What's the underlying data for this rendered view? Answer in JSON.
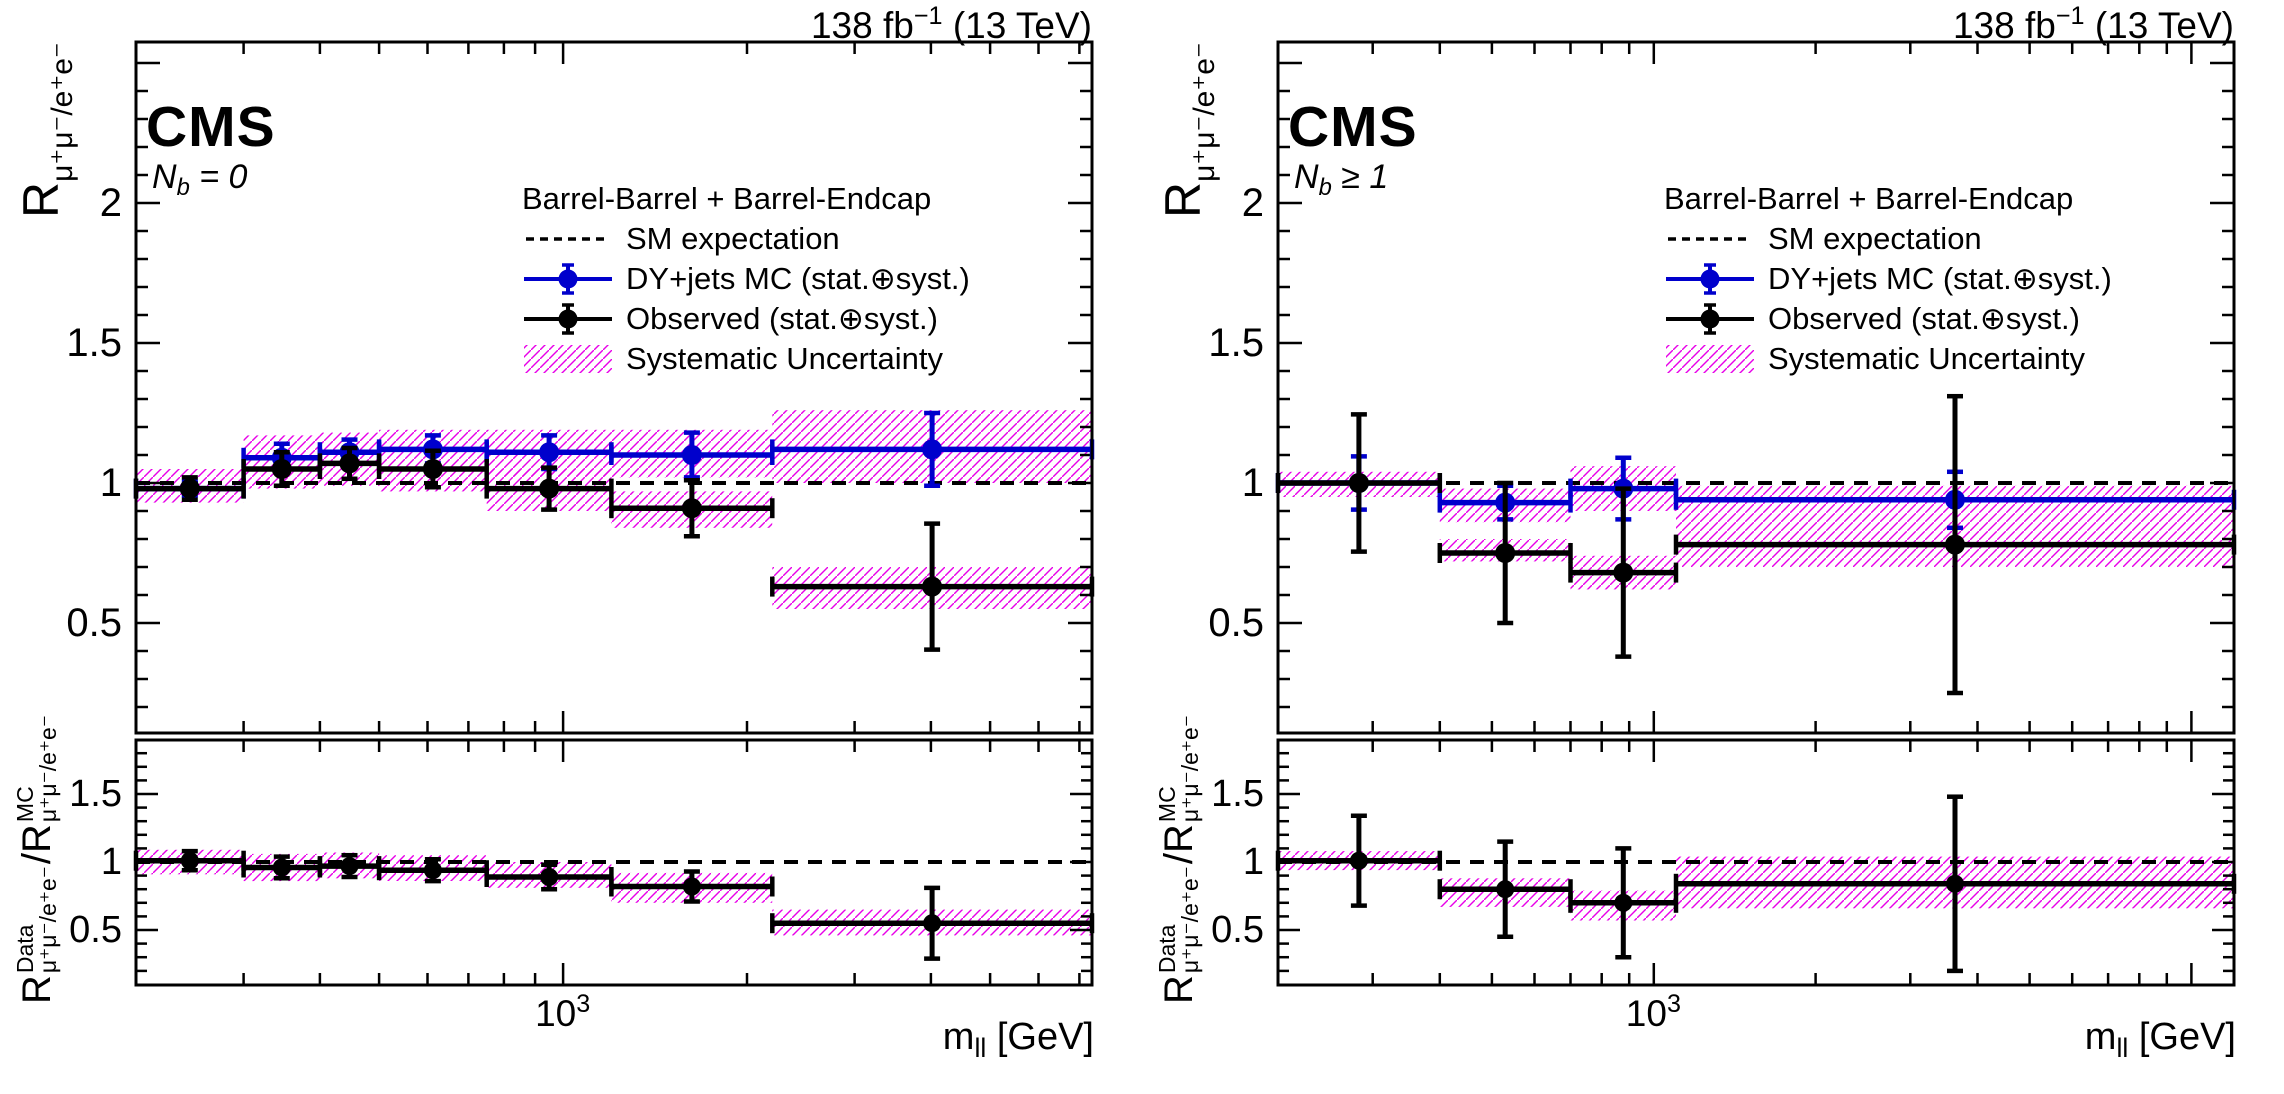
{
  "branding": {
    "experiment": "CMS"
  },
  "header": {
    "lumi_prefix": "138 fb",
    "lumi_sup": "−1",
    "lumi_suffix": " (13 TeV)"
  },
  "axes": {
    "y_main_R": "R",
    "y_main_sub": "μ⁺μ⁻/e⁺e⁻",
    "y_ratio_R1": "R",
    "y_ratio_sup1": "Data",
    "y_ratio_sub1": "μ⁺μ⁻/e⁺e⁻",
    "y_ratio_mid": "/R",
    "y_ratio_sup2": "MC",
    "y_ratio_sub2": "μ⁺μ⁻/e⁺e⁻",
    "x_prefix": "m",
    "x_sub": "ll",
    "x_suffix": " [GeV]",
    "decade_base": "10",
    "decade_exp": "3"
  },
  "panels": [
    {
      "category_prefix": "N",
      "category_sub": "b",
      "category_rest": " = 0"
    },
    {
      "category_prefix": "N",
      "category_sub": "b",
      "category_rest": " ≥ 1"
    }
  ],
  "legend": {
    "title": "Barrel-Barrel + Barrel-Endcap",
    "entries": [
      {
        "label": "SM expectation",
        "swatch": "dashed-line"
      },
      {
        "label": "DY+jets MC (stat.⊕syst.)",
        "swatch": "mc-marker"
      },
      {
        "label": "Observed (stat.⊕syst.)",
        "swatch": "obs-marker"
      },
      {
        "label": "Systematic Uncertainty",
        "swatch": "hatch-box"
      }
    ]
  },
  "colors": {
    "mc_blue": "#0000cc",
    "observed_black": "#000000",
    "syst_hatch_magenta": "#e800e8",
    "sm_dashed_black": "#000000"
  },
  "chart_data": [
    {
      "type": "errorbar",
      "title": "CMS",
      "category": "N_b = 0",
      "lumi": "138 fb-1 (13 TeV)",
      "region": "Barrel-Barrel + Barrel-Endcap",
      "legend": [
        "SM expectation",
        "DY+jets MC (stat.⊕syst.)",
        "Observed (stat.⊕syst.)",
        "Systematic Uncertainty"
      ],
      "xlabel": "m_ll [GeV]",
      "x_axis": {
        "scale": "log",
        "min": 200,
        "max": 7340
      },
      "y_main": {
        "label": "R_mu+mu-/e+e-",
        "min": 0.107,
        "max": 2.575,
        "tick_values": [
          0.5,
          1,
          1.5,
          2
        ],
        "tick_labels": [
          "0.5",
          "1",
          "1.5",
          "2"
        ]
      },
      "y_ratio": {
        "label": "R_Data / R_MC",
        "min": 0.096,
        "max": 1.897,
        "tick_values": [
          0.5,
          1,
          1.5
        ],
        "tick_labels": [
          "0.5",
          "1",
          "1.5"
        ]
      },
      "sm_expectation": 1.0,
      "bins": [
        {
          "range": [
            200,
            300
          ],
          "mc": 0.98,
          "mc_err": 0.025,
          "obs": 0.98,
          "obs_err": 0.04,
          "syst_bands": [
            [
              0.93,
              1.05
            ]
          ],
          "ratio": 1.01,
          "ratio_err": 0.07,
          "ratio_syst_bands": [
            [
              0.91,
              1.09
            ]
          ]
        },
        {
          "range": [
            300,
            400
          ],
          "mc": 1.09,
          "mc_err": 0.05,
          "obs": 1.05,
          "obs_err": 0.06,
          "syst_bands": [
            [
              0.98,
              1.17
            ]
          ],
          "ratio": 0.96,
          "ratio_err": 0.08,
          "ratio_syst_bands": [
            [
              0.86,
              1.06
            ]
          ]
        },
        {
          "range": [
            400,
            500
          ],
          "mc": 1.11,
          "mc_err": 0.045,
          "obs": 1.07,
          "obs_err": 0.055,
          "syst_bands": [
            [
              0.99,
              1.18
            ]
          ],
          "ratio": 0.97,
          "ratio_err": 0.08,
          "ratio_syst_bands": [
            [
              0.88,
              1.07
            ]
          ]
        },
        {
          "range": [
            500,
            750
          ],
          "mc": 1.12,
          "mc_err": 0.05,
          "obs": 1.05,
          "obs_err": 0.065,
          "syst_bands": [
            [
              0.97,
              1.19
            ]
          ],
          "ratio": 0.94,
          "ratio_err": 0.08,
          "ratio_syst_bands": [
            [
              0.86,
              1.05
            ]
          ]
        },
        {
          "range": [
            750,
            1200
          ],
          "mc": 1.11,
          "mc_err": 0.06,
          "obs": 0.98,
          "obs_err": 0.075,
          "syst_bands": [
            [
              1.02,
              1.19
            ],
            [
              0.9,
              1.05
            ]
          ],
          "ratio": 0.89,
          "ratio_err": 0.09,
          "ratio_syst_bands": [
            [
              0.81,
              1.0
            ]
          ]
        },
        {
          "range": [
            1200,
            2200
          ],
          "mc": 1.1,
          "mc_err": 0.08,
          "obs": 0.91,
          "obs_err": 0.1,
          "syst_bands": [
            [
              1.02,
              1.19
            ],
            [
              0.84,
              0.97
            ]
          ],
          "ratio": 0.82,
          "ratio_err": 0.11,
          "ratio_syst_bands": [
            [
              0.7,
              0.92
            ]
          ]
        },
        {
          "range": [
            2200,
            7340
          ],
          "mc": 1.12,
          "mc_err": 0.13,
          "obs": 0.63,
          "obs_err": 0.225,
          "syst_bands": [
            [
              1.0,
              1.26
            ],
            [
              0.55,
              0.7
            ]
          ],
          "ratio": 0.55,
          "ratio_err": 0.26,
          "ratio_syst_bands": [
            [
              0.46,
              0.65
            ]
          ]
        }
      ]
    },
    {
      "type": "errorbar",
      "title": "CMS",
      "category": "N_b ≥ 1",
      "lumi": "138 fb-1 (13 TeV)",
      "region": "Barrel-Barrel + Barrel-Endcap",
      "legend": [
        "SM expectation",
        "DY+jets MC (stat.⊕syst.)",
        "Observed (stat.⊕syst.)",
        "Systematic Uncertainty"
      ],
      "xlabel": "m_ll [GeV]",
      "x_axis": {
        "scale": "log",
        "min": 200,
        "max": 12000
      },
      "y_main": {
        "label": "R_mu+mu-/e+e-",
        "min": 0.107,
        "max": 2.575,
        "tick_values": [
          0.5,
          1,
          1.5,
          2
        ],
        "tick_labels": [
          "0.5",
          "1",
          "1.5",
          "2"
        ]
      },
      "y_ratio": {
        "label": "R_Data / R_MC",
        "min": 0.096,
        "max": 1.897,
        "tick_values": [
          0.5,
          1,
          1.5
        ],
        "tick_labels": [
          "0.5",
          "1",
          "1.5"
        ]
      },
      "sm_expectation": 1.0,
      "bins": [
        {
          "range": [
            200,
            400
          ],
          "mc": 1.0,
          "mc_err": 0.095,
          "obs": 1.0,
          "obs_err": 0.245,
          "syst_bands": [
            [
              0.95,
              1.04
            ]
          ],
          "ratio": 1.01,
          "ratio_err": 0.33,
          "ratio_syst_bands": [
            [
              0.94,
              1.08
            ]
          ]
        },
        {
          "range": [
            400,
            700
          ],
          "mc": 0.93,
          "mc_err": 0.06,
          "obs": 0.75,
          "obs_err": 0.25,
          "syst_bands": [
            [
              0.86,
              0.98
            ],
            [
              0.72,
              0.8
            ]
          ],
          "ratio": 0.8,
          "ratio_err": 0.35,
          "ratio_syst_bands": [
            [
              0.67,
              0.88
            ]
          ]
        },
        {
          "range": [
            700,
            1100
          ],
          "mc": 0.98,
          "mc_err": 0.11,
          "obs": 0.68,
          "obs_err": 0.3,
          "syst_bands": [
            [
              0.9,
              1.06
            ],
            [
              0.62,
              0.74
            ]
          ],
          "ratio": 0.7,
          "ratio_err": 0.4,
          "ratio_syst_bands": [
            [
              0.57,
              0.79
            ]
          ]
        },
        {
          "range": [
            1100,
            12000
          ],
          "mc": 0.94,
          "mc_err": 0.1,
          "obs": 0.78,
          "obs_err": 0.53,
          "syst_bands": [
            [
              0.7,
              0.99
            ]
          ],
          "ratio": 0.84,
          "ratio_err": 0.64,
          "ratio_syst_bands": [
            [
              0.66,
              1.04
            ]
          ]
        }
      ]
    }
  ]
}
